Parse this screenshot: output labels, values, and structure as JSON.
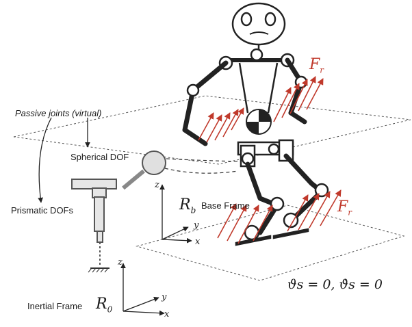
{
  "labels": {
    "passive_joints": "Passive joints (virtual)",
    "spherical_dof": "Spherical DOF",
    "prismatic_dofs": "Prismatic DOFs",
    "base_frame": "Base Frame",
    "inertial_frame": "Inertial Frame",
    "rb": "R",
    "rb_sub": "b",
    "r0": "R",
    "r0_sub": "0",
    "force_top": "F",
    "force_top_sub": "r",
    "force_bottom": "F",
    "force_bottom_sub": "r",
    "equation": "ϑs = 0,   ϑ̇s = 0"
  },
  "axes": {
    "z": "z",
    "y": "y",
    "x": "x"
  },
  "colors": {
    "force": "#c0392b",
    "line": "#222222",
    "plane": "#555555"
  }
}
